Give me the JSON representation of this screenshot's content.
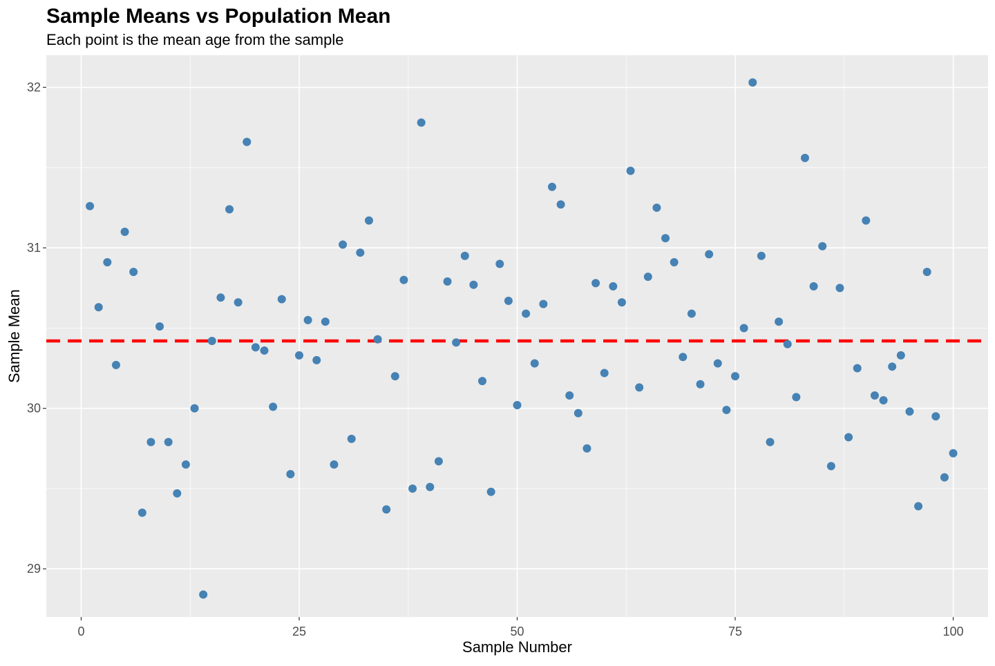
{
  "chart_data": {
    "type": "scatter",
    "title": "Sample Means vs Population Mean",
    "subtitle": "Each point is the mean age from the sample",
    "xlabel": "Sample Number",
    "ylabel": "Sample Mean",
    "xlim": [
      -4,
      104
    ],
    "ylim": [
      28.7,
      32.2
    ],
    "x_ticks": [
      0,
      25,
      50,
      75,
      100
    ],
    "y_ticks": [
      29,
      30,
      31,
      32
    ],
    "grid": true,
    "point_color": "#4682B4",
    "panel_background": "#EBEBEB",
    "grid_color": "#FFFFFF",
    "reference_line": {
      "y": 30.42,
      "color": "#FF0000",
      "style": "dashed"
    },
    "x": [
      1,
      2,
      3,
      4,
      5,
      6,
      7,
      8,
      9,
      10,
      11,
      12,
      13,
      14,
      15,
      16,
      17,
      18,
      19,
      20,
      21,
      22,
      23,
      24,
      25,
      26,
      27,
      28,
      29,
      30,
      31,
      32,
      33,
      34,
      35,
      36,
      37,
      38,
      39,
      40,
      41,
      42,
      43,
      44,
      45,
      46,
      47,
      48,
      49,
      50,
      51,
      52,
      53,
      54,
      55,
      56,
      57,
      58,
      59,
      60,
      61,
      62,
      63,
      64,
      65,
      66,
      67,
      68,
      69,
      70,
      71,
      72,
      73,
      74,
      75,
      76,
      77,
      78,
      79,
      80,
      81,
      82,
      83,
      84,
      85,
      86,
      87,
      88,
      89,
      90,
      91,
      92,
      93,
      94,
      95,
      96,
      97,
      98,
      99,
      100
    ],
    "y": [
      31.26,
      30.63,
      30.91,
      30.27,
      31.1,
      30.85,
      29.35,
      29.79,
      30.51,
      29.79,
      29.47,
      29.65,
      30.0,
      28.84,
      30.42,
      30.69,
      31.24,
      30.66,
      31.66,
      30.38,
      30.36,
      30.01,
      30.68,
      29.59,
      30.33,
      30.55,
      30.3,
      30.54,
      29.65,
      31.02,
      29.81,
      30.97,
      31.17,
      30.43,
      29.37,
      30.2,
      30.8,
      29.5,
      31.78,
      29.51,
      29.67,
      30.79,
      30.41,
      30.95,
      30.77,
      30.17,
      29.48,
      30.9,
      30.67,
      30.02,
      30.59,
      30.28,
      30.65,
      31.38,
      31.27,
      30.08,
      29.97,
      29.75,
      30.78,
      30.22,
      30.76,
      30.66,
      31.48,
      30.13,
      30.82,
      31.25,
      31.06,
      30.91,
      30.32,
      30.59,
      30.15,
      30.96,
      30.28,
      29.99,
      30.2,
      30.5,
      32.03,
      30.95,
      29.79,
      30.54,
      30.4,
      30.07,
      31.56,
      30.76,
      31.01,
      29.64,
      30.75,
      29.82,
      30.25,
      31.17,
      30.08,
      30.05,
      30.26,
      30.33,
      29.98,
      29.39,
      30.85,
      29.95,
      29.57,
      29.72
    ]
  }
}
